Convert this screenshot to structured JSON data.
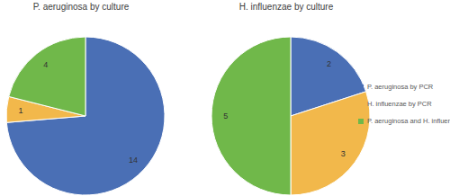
{
  "chart_data": [
    {
      "type": "pie",
      "title": "P. aeruginosa by culture",
      "categories": [
        "P. aeruginosa by PCR",
        "H. influenzae by PCR",
        "P. aeruginosa and H. influenzae by PCR"
      ],
      "values": [
        14,
        1,
        4
      ],
      "colors": [
        "#4a6fb5",
        "#f2b84b",
        "#70b84a"
      ],
      "data_labels": true
    },
    {
      "type": "pie",
      "title": "H. influenzae by culture",
      "categories": [
        "P. aeruginosa by PCR",
        "H. influenzae by PCR",
        "P. aeruginosa and H. influenzae by PCR"
      ],
      "values": [
        2,
        3,
        5
      ],
      "colors": [
        "#4a6fb5",
        "#f2b84b",
        "#70b84a"
      ],
      "data_labels": true,
      "legend": "right"
    }
  ]
}
